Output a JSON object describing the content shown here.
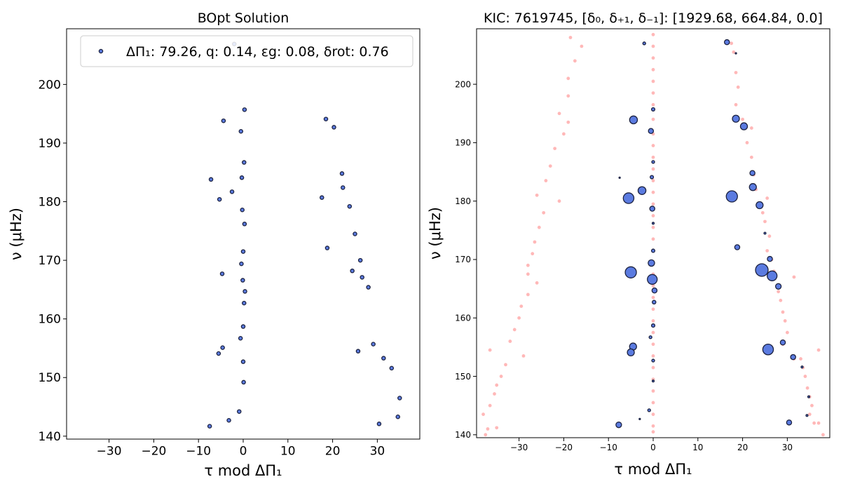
{
  "chart_data": [
    {
      "type": "scatter",
      "title": "BOpt Solution",
      "xlabel": "τ mod ΔΠ₁",
      "ylabel": "ν (μHz)",
      "xlim": [
        -39.5,
        39.5
      ],
      "ylim": [
        139.5,
        209.5
      ],
      "xticks": [
        -30,
        -20,
        -10,
        0,
        10,
        20,
        30
      ],
      "yticks": [
        140,
        150,
        160,
        170,
        180,
        190,
        200
      ],
      "legend_position": "top-right",
      "legend": "ΔΠ₁: 79.26, q: 0.14, εg: 0.08, δrot: 0.76",
      "series": [
        {
          "name": "ΔΠ₁: 79.26, q: 0.14, εg: 0.08, δrot: 0.76",
          "points": [
            [
              -2,
              206.9
            ],
            [
              0.3,
              195.7
            ],
            [
              -4.4,
              193.8
            ],
            [
              -0.5,
              192
            ],
            [
              0.2,
              186.7
            ],
            [
              -0.3,
              184.1
            ],
            [
              -7.2,
              183.8
            ],
            [
              -2.5,
              181.7
            ],
            [
              -5.3,
              180.4
            ],
            [
              -0.2,
              178.6
            ],
            [
              0.3,
              176.2
            ],
            [
              0,
              171.5
            ],
            [
              -0.4,
              169.4
            ],
            [
              -4.7,
              167.7
            ],
            [
              -0.1,
              166.6
            ],
            [
              0.4,
              164.7
            ],
            [
              0.2,
              162.7
            ],
            [
              0,
              158.7
            ],
            [
              -0.6,
              156.7
            ],
            [
              -4.6,
              155.1
            ],
            [
              -5.5,
              154.1
            ],
            [
              0,
              152.7
            ],
            [
              0.1,
              149.2
            ],
            [
              -0.9,
              144.2
            ],
            [
              -3.2,
              142.7
            ],
            [
              -7.5,
              141.7
            ],
            [
              18.5,
              194.1
            ],
            [
              20.3,
              192.7
            ],
            [
              22.1,
              184.8
            ],
            [
              22.3,
              182.4
            ],
            [
              17.6,
              180.7
            ],
            [
              23.8,
              179.2
            ],
            [
              25,
              174.5
            ],
            [
              18.8,
              172.1
            ],
            [
              26.2,
              170
            ],
            [
              24.4,
              168.2
            ],
            [
              26.6,
              167.1
            ],
            [
              28,
              165.4
            ],
            [
              29.1,
              155.7
            ],
            [
              25.7,
              154.5
            ],
            [
              31.4,
              153.3
            ],
            [
              33.2,
              151.6
            ],
            [
              35,
              146.5
            ],
            [
              34.6,
              143.3
            ],
            [
              30.4,
              142.1
            ]
          ]
        }
      ]
    },
    {
      "type": "scatter",
      "title": "KIC: 7619745, [δ₀, δ₊₁, δ₋₁]: [1929.68, 664.84, 0.0]",
      "xlabel": "τ mod ΔΠ₁",
      "ylabel": "ν (μHz)",
      "xlim": [
        -39.5,
        39.5
      ],
      "ylim": [
        139.5,
        209.5
      ],
      "xticks": [
        -30,
        -20,
        -10,
        0,
        10,
        20,
        30
      ],
      "yticks": [
        140,
        150,
        160,
        170,
        180,
        190,
        200
      ],
      "series": [
        {
          "name": "",
          "points": [
            [
              -18.5,
              208
            ],
            [
              -16,
              206.5
            ],
            [
              -17.5,
              204
            ],
            [
              -19,
              201
            ],
            [
              -19,
              198
            ],
            [
              -21,
              195
            ],
            [
              -19,
              193.5
            ],
            [
              -20,
              191.5
            ],
            [
              -22,
              189
            ],
            [
              -23,
              186
            ],
            [
              -24,
              183.5
            ],
            [
              -26,
              181
            ],
            [
              -21,
              180
            ],
            [
              -24.5,
              178
            ],
            [
              -25.5,
              175.5
            ],
            [
              -26.5,
              173
            ],
            [
              -27,
              171
            ],
            [
              -28,
              169
            ],
            [
              -28,
              167.5
            ],
            [
              -26,
              166
            ],
            [
              -28,
              164
            ],
            [
              -29.5,
              162
            ],
            [
              -30,
              160
            ],
            [
              -31,
              158
            ],
            [
              -32,
              156
            ],
            [
              -29,
              153.5
            ],
            [
              -33,
              152
            ],
            [
              -34,
              150
            ],
            [
              -35,
              148.5
            ],
            [
              -35.5,
              147
            ],
            [
              -36.5,
              145
            ],
            [
              -38,
              143.5
            ],
            [
              -37,
              141
            ],
            [
              -37.5,
              140
            ],
            [
              -36.5,
              154.5
            ],
            [
              -35,
              141.2
            ],
            [
              0,
              208.5
            ],
            [
              0,
              206.5
            ],
            [
              0,
              204.5
            ],
            [
              0,
              202.5
            ],
            [
              0,
              200.5
            ],
            [
              0,
              198.5
            ],
            [
              0,
              196.5
            ],
            [
              0,
              194
            ],
            [
              0,
              191.5
            ],
            [
              0,
              189.5
            ],
            [
              0,
              187.5
            ],
            [
              0,
              185.5
            ],
            [
              0,
              183.5
            ],
            [
              0,
              181.5
            ],
            [
              0,
              179.5
            ],
            [
              0,
              177.5
            ],
            [
              0,
              175.5
            ],
            [
              0,
              173.5
            ],
            [
              0,
              171.5
            ],
            [
              0,
              169.5
            ],
            [
              0,
              167.5
            ],
            [
              0,
              165.5
            ],
            [
              0,
              163.5
            ],
            [
              0,
              161.5
            ],
            [
              0,
              159.5
            ],
            [
              0,
              157.5
            ],
            [
              0,
              155.5
            ],
            [
              0,
              153.5
            ],
            [
              0,
              151.5
            ],
            [
              0,
              149.5
            ],
            [
              0,
              147.5
            ],
            [
              0,
              145.5
            ],
            [
              0,
              143.5
            ],
            [
              0,
              141.5
            ],
            [
              0,
              140.5
            ],
            [
              17.5,
              207
            ],
            [
              18,
              205.5
            ],
            [
              18.5,
              202
            ],
            [
              19,
              199.5
            ],
            [
              18.5,
              196.5
            ],
            [
              20,
              194
            ],
            [
              21,
              190
            ],
            [
              22,
              192.5
            ],
            [
              22,
              187.5
            ],
            [
              22.5,
              184.5
            ],
            [
              23,
              182
            ],
            [
              25.5,
              180.5
            ],
            [
              24.5,
              178
            ],
            [
              25,
              176.5
            ],
            [
              26,
              174
            ],
            [
              25.5,
              171.5
            ],
            [
              26.5,
              170
            ],
            [
              27,
              168
            ],
            [
              31.5,
              167
            ],
            [
              28,
              164.5
            ],
            [
              28.5,
              163
            ],
            [
              29,
              161
            ],
            [
              29.5,
              159.5
            ],
            [
              30,
              157.5
            ],
            [
              29,
              155.5
            ],
            [
              33,
              153
            ],
            [
              33.5,
              151.5
            ],
            [
              34,
              150
            ],
            [
              34.5,
              148
            ],
            [
              35,
              146.5
            ],
            [
              35.5,
              145
            ],
            [
              35,
              143.5
            ],
            [
              36,
              142
            ],
            [
              37,
              142
            ],
            [
              38,
              140
            ],
            [
              31.5,
              153
            ],
            [
              37,
              154.5
            ]
          ]
        },
        {
          "name": "",
          "points": [
            [
              -2,
              207,
              1
            ],
            [
              0,
              195.7,
              1.2
            ],
            [
              -4.4,
              193.9,
              2.8
            ],
            [
              -0.5,
              192,
              1.8
            ],
            [
              0,
              186.7,
              1
            ],
            [
              -0.3,
              184.1,
              1.2
            ],
            [
              -7.5,
              184,
              0.5
            ],
            [
              -2.5,
              181.8,
              2.8
            ],
            [
              -5.5,
              180.5,
              3.8
            ],
            [
              -0.2,
              178.7,
              1.8
            ],
            [
              0,
              176.2,
              0.7
            ],
            [
              0,
              171.5,
              1.2
            ],
            [
              -0.4,
              169.4,
              2.3
            ],
            [
              -5,
              167.8,
              4
            ],
            [
              -0.2,
              166.6,
              3.5
            ],
            [
              0.3,
              164.7,
              1.8
            ],
            [
              0.2,
              162.7,
              1.3
            ],
            [
              0,
              158.7,
              1.2
            ],
            [
              -0.6,
              156.7,
              1
            ],
            [
              -4.5,
              155.1,
              2.5
            ],
            [
              -5,
              154.1,
              2.5
            ],
            [
              0,
              152.7,
              1
            ],
            [
              0,
              149.2,
              0.7
            ],
            [
              -0.9,
              144.2,
              1
            ],
            [
              -3,
              142.7,
              0.5
            ],
            [
              -7.7,
              141.7,
              2
            ],
            [
              16.5,
              207.2,
              1.8
            ],
            [
              18.5,
              205.3,
              0.5
            ],
            [
              18.5,
              194.1,
              2.5
            ],
            [
              20.3,
              192.8,
              2.5
            ],
            [
              22.2,
              184.8,
              1.8
            ],
            [
              22.3,
              182.4,
              2.5
            ],
            [
              17.6,
              180.8,
              4
            ],
            [
              23.8,
              179.3,
              2.5
            ],
            [
              25,
              174.5,
              0.7
            ],
            [
              18.8,
              172.1,
              1.8
            ],
            [
              26.1,
              170.1,
              1.8
            ],
            [
              24.3,
              168.2,
              4.5
            ],
            [
              26.6,
              167.2,
              3.5
            ],
            [
              28,
              165.4,
              2
            ],
            [
              29,
              155.8,
              1.8
            ],
            [
              25.7,
              154.6,
              3.8
            ],
            [
              31.3,
              153.3,
              1.8
            ],
            [
              33.3,
              151.6,
              0.7
            ],
            [
              34.8,
              146.5,
              0.7
            ],
            [
              34.4,
              143.3,
              0.7
            ],
            [
              30.4,
              142.1,
              1.8
            ]
          ]
        }
      ]
    }
  ]
}
